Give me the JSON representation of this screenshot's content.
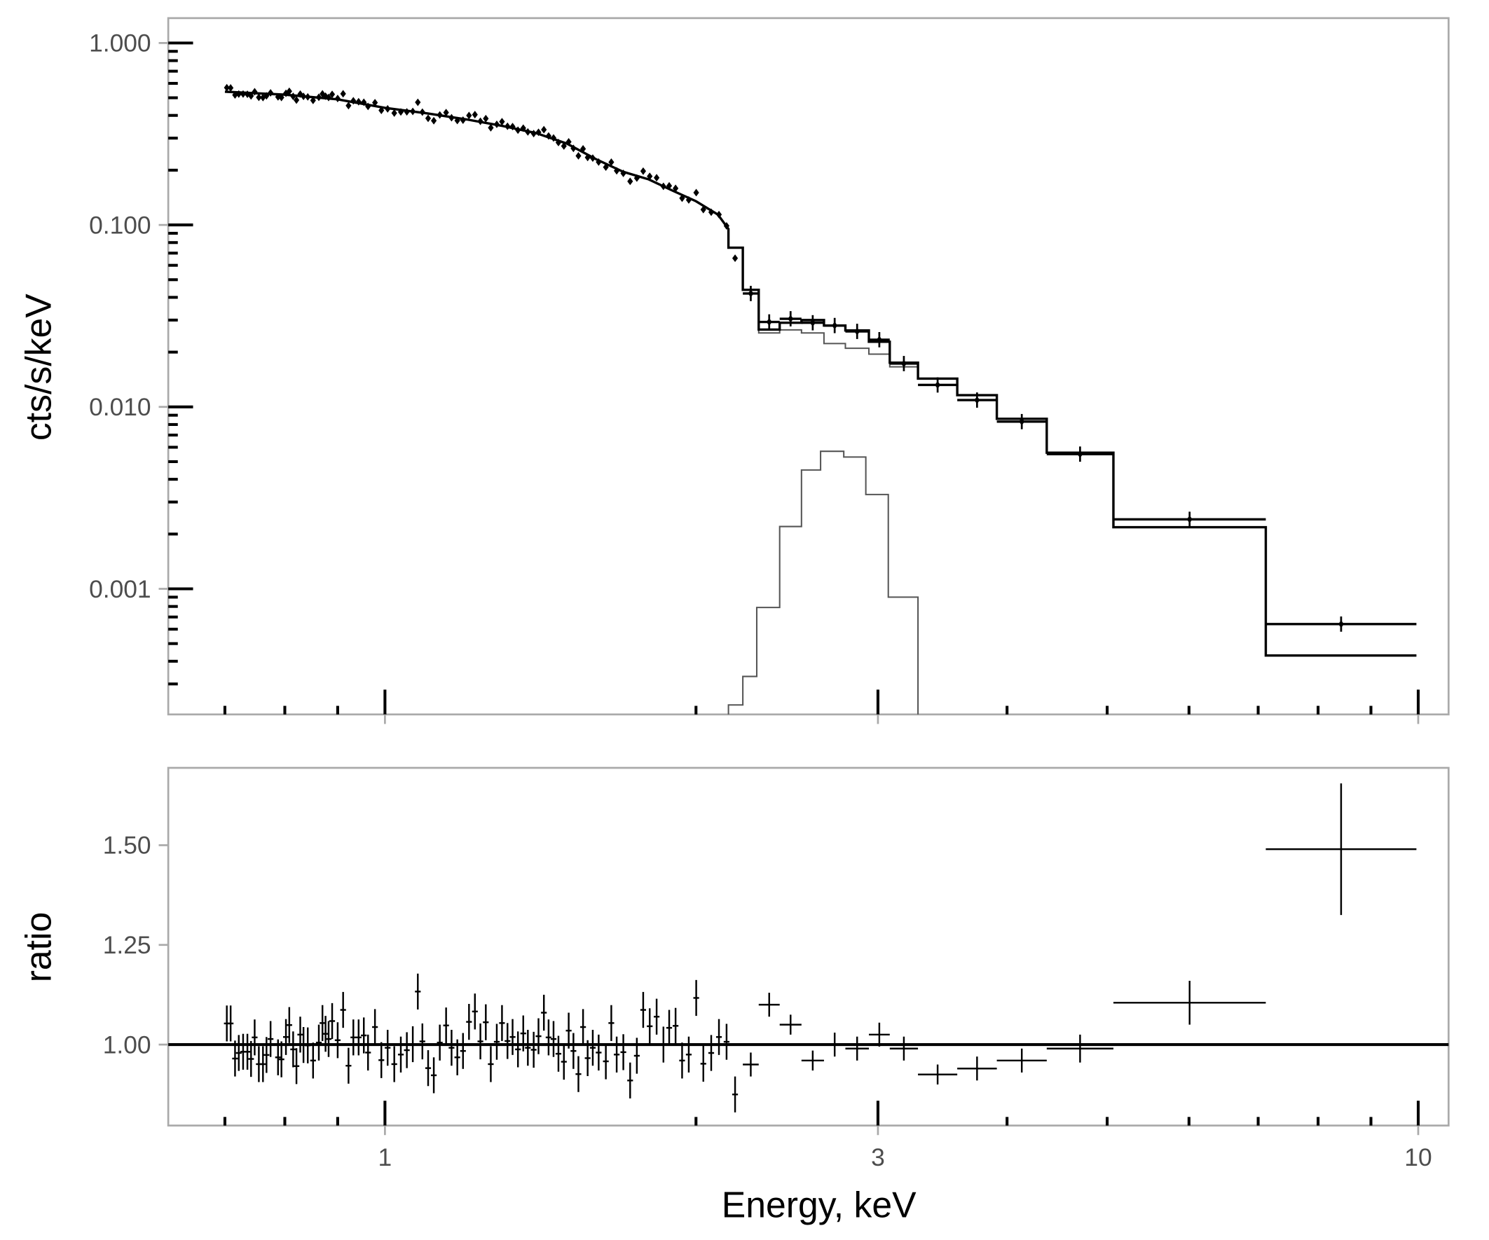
{
  "chart_data": [
    {
      "type": "line",
      "panel": "spectrum",
      "xlabel": "Energy, keV",
      "ylabel": "cts/s/keV",
      "xscale": "log",
      "yscale": "log",
      "xlim": [
        0.617,
        10.7
      ],
      "ylim": [
        0.000204,
        1.37
      ],
      "yticks": [
        {
          "v": 1,
          "label": "1.000"
        },
        {
          "v": 0.1,
          "label": "0.100"
        },
        {
          "v": 0.01,
          "label": "0.010"
        },
        {
          "v": 0.001,
          "label": "0.001"
        }
      ],
      "grid": false,
      "colors": {
        "data": "#000000",
        "model": "#000000",
        "components": "#555555",
        "frame": "#aaaaaa"
      },
      "model_curve": {
        "energy": [
          0.7,
          0.8,
          0.9,
          1.0,
          1.1,
          1.2,
          1.3,
          1.4,
          1.5,
          1.6,
          1.7,
          1.8,
          1.9,
          2.0,
          2.1,
          2.15
        ],
        "counts": [
          0.54,
          0.52,
          0.49,
          0.44,
          0.41,
          0.38,
          0.35,
          0.32,
          0.28,
          0.23,
          0.196,
          0.178,
          0.154,
          0.135,
          0.114,
          0.095
        ]
      },
      "model_steps": [
        {
          "lo": 2.15,
          "hi": 2.22,
          "model": 0.075
        },
        {
          "lo": 2.22,
          "hi": 2.3,
          "model": 0.044
        }
      ],
      "high_bins": [
        {
          "lo": 2.3,
          "hi": 2.41,
          "counts": 0.0293,
          "model": 0.0266,
          "continuum": 0.0255
        },
        {
          "lo": 2.41,
          "hi": 2.53,
          "counts": 0.0305,
          "model": 0.029,
          "continuum": 0.0265
        },
        {
          "lo": 2.53,
          "hi": 2.66,
          "counts": 0.029,
          "model": 0.03,
          "continuum": 0.0255
        },
        {
          "lo": 2.66,
          "hi": 2.79,
          "counts": 0.028,
          "model": 0.028,
          "continuum": 0.0223
        },
        {
          "lo": 2.79,
          "hi": 2.94,
          "counts": 0.026,
          "model": 0.0263,
          "continuum": 0.021
        },
        {
          "lo": 2.94,
          "hi": 3.08,
          "counts": 0.0234,
          "model": 0.0228,
          "continuum": 0.0195
        },
        {
          "lo": 3.08,
          "hi": 3.28,
          "counts": 0.0173,
          "model": 0.0175,
          "continuum": 0.0166
        },
        {
          "lo": 3.28,
          "hi": 3.58,
          "counts": 0.0132,
          "model": 0.0143
        },
        {
          "lo": 3.58,
          "hi": 3.91,
          "counts": 0.0109,
          "model": 0.0116
        },
        {
          "lo": 3.91,
          "hi": 4.37,
          "counts": 0.0083,
          "model": 0.0086
        },
        {
          "lo": 4.37,
          "hi": 5.07,
          "counts": 0.0055,
          "model": 0.0056
        },
        {
          "lo": 5.07,
          "hi": 7.12,
          "counts": 0.00241,
          "model": 0.00218
        },
        {
          "lo": 7.12,
          "hi": 9.96,
          "counts": 0.00064,
          "model": 0.00043
        }
      ],
      "line_component": {
        "edges": [
          2.15,
          2.22,
          2.29,
          2.41,
          2.53,
          2.64,
          2.78,
          2.92,
          3.07,
          3.28
        ],
        "counts": [
          0.00023,
          0.00033,
          0.00079,
          0.0022,
          0.0045,
          0.0057,
          0.0053,
          0.0033,
          0.0009
        ]
      }
    },
    {
      "type": "scatter",
      "panel": "ratio",
      "xlabel": "Energy, keV",
      "ylabel": "ratio",
      "xscale": "log",
      "xlim": [
        0.617,
        10.7
      ],
      "ylim": [
        0.797,
        1.694
      ],
      "xticks": [
        {
          "v": 1,
          "label": "1"
        },
        {
          "v": 3,
          "label": "3"
        },
        {
          "v": 10,
          "label": "10"
        }
      ],
      "yticks": [
        {
          "v": 1.0,
          "label": "1.00"
        },
        {
          "v": 1.25,
          "label": "1.25"
        },
        {
          "v": 1.5,
          "label": "1.50"
        }
      ],
      "reference_line": 1.0,
      "low_points": {
        "ratio_err": 0.045,
        "energy": [
          0.703,
          0.709,
          0.716,
          0.722,
          0.729,
          0.736,
          0.742,
          0.748,
          0.755,
          0.762,
          0.768,
          0.775,
          0.788,
          0.794,
          0.802,
          0.808,
          0.815,
          0.821,
          0.828,
          0.834,
          0.842,
          0.852,
          0.863,
          0.87,
          0.876,
          0.882,
          0.889,
          0.9,
          0.911,
          0.922,
          0.932,
          0.943,
          0.954,
          0.963,
          0.978,
          0.992,
          1.006,
          1.021,
          1.036,
          1.05,
          1.064,
          1.076,
          1.087,
          1.101,
          1.115,
          1.13,
          1.146,
          1.16,
          1.175,
          1.19,
          1.206,
          1.222,
          1.237,
          1.252,
          1.266,
          1.283,
          1.298,
          1.314,
          1.329,
          1.345,
          1.361,
          1.375,
          1.393,
          1.408,
          1.425,
          1.44,
          1.456,
          1.472,
          1.49,
          1.506,
          1.522,
          1.539,
          1.555,
          1.571,
          1.589,
          1.61,
          1.636,
          1.656,
          1.676,
          1.701,
          1.727,
          1.753,
          1.778,
          1.804,
          1.832,
          1.86,
          1.884,
          1.911,
          1.939,
          1.968,
          2.001,
          2.033,
          2.069,
          2.105,
          2.141,
          2.182
        ],
        "ratio": [
          1.053,
          1.053,
          0.965,
          0.979,
          0.982,
          0.982,
          0.964,
          1.018,
          0.951,
          0.951,
          0.974,
          1.014,
          0.968,
          0.963,
          1.019,
          1.049,
          0.988,
          0.946,
          1.025,
          0.999,
          0.998,
          0.96,
          1.005,
          1.054,
          1.027,
          1.014,
          1.059,
          1.011,
          1.087,
          0.947,
          1.018,
          1.018,
          1.023,
          0.98,
          1.044,
          0.961,
          0.992,
          0.951,
          0.975,
          0.986,
          1.001,
          1.133,
          1.008,
          0.941,
          0.923,
          1.005,
          1.048,
          0.992,
          0.968,
          0.984,
          1.057,
          1.083,
          1.008,
          1.056,
          0.951,
          1.007,
          1.054,
          1.009,
          1.019,
          0.988,
          1.028,
          0.992,
          0.987,
          1.021,
          1.08,
          1.018,
          1.014,
          0.977,
          0.957,
          1.035,
          0.984,
          0.926,
          1.044,
          0.966,
          0.992,
          0.98,
          0.958,
          1.054,
          0.975,
          0.981,
          0.91,
          0.972,
          1.087,
          1.046,
          1.07,
          1.0,
          1.042,
          1.047,
          0.96,
          0.975,
          1.117,
          0.952,
          0.979,
          1.019,
          1.007,
          0.875
        ]
      },
      "high_points": [
        {
          "lo": 2.22,
          "hi": 2.3,
          "ratio": 0.95,
          "err": 0.03
        },
        {
          "lo": 2.3,
          "hi": 2.41,
          "ratio": 1.1,
          "err": 0.03
        },
        {
          "lo": 2.41,
          "hi": 2.53,
          "ratio": 1.05,
          "err": 0.025
        },
        {
          "lo": 2.53,
          "hi": 2.66,
          "ratio": 0.96,
          "err": 0.025
        },
        {
          "lo": 2.66,
          "hi": 2.79,
          "ratio": 1.0,
          "err": 0.03
        },
        {
          "lo": 2.79,
          "hi": 2.94,
          "ratio": 0.99,
          "err": 0.03
        },
        {
          "lo": 2.94,
          "hi": 3.08,
          "ratio": 1.025,
          "err": 0.03
        },
        {
          "lo": 3.08,
          "hi": 3.28,
          "ratio": 0.99,
          "err": 0.03
        },
        {
          "lo": 3.28,
          "hi": 3.58,
          "ratio": 0.925,
          "err": 0.025
        },
        {
          "lo": 3.58,
          "hi": 3.91,
          "ratio": 0.94,
          "err": 0.03
        },
        {
          "lo": 3.91,
          "hi": 4.37,
          "ratio": 0.96,
          "err": 0.03
        },
        {
          "lo": 4.37,
          "hi": 5.07,
          "ratio": 0.99,
          "err": 0.035
        },
        {
          "lo": 5.07,
          "hi": 7.12,
          "ratio": 1.105,
          "err": 0.055
        },
        {
          "lo": 7.12,
          "hi": 9.96,
          "ratio": 1.49,
          "err": 0.165
        }
      ]
    }
  ]
}
